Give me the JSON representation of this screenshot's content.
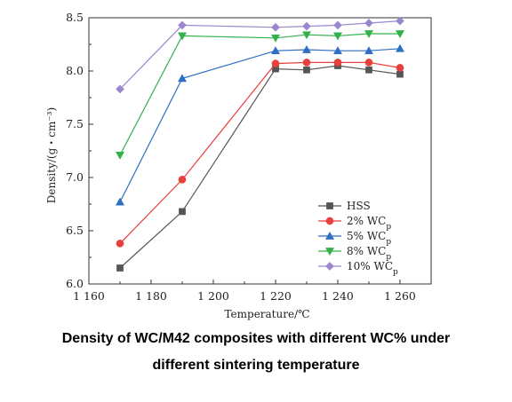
{
  "caption": {
    "line1": "Density of WC/M42 composites with different WC% under",
    "line2": "different sintering temperature"
  },
  "chart_data": {
    "type": "line",
    "title": "",
    "xlabel": "Temperature/℃",
    "ylabel": "Density/(g・cm⁻³)",
    "xlim": [
      1160,
      1270
    ],
    "ylim": [
      6.0,
      8.5
    ],
    "xticks": [
      1160,
      1180,
      1200,
      1220,
      1240,
      1260
    ],
    "xtick_labels": [
      "1 160",
      "1 180",
      "1 200",
      "1 220",
      "1 240",
      "1 260"
    ],
    "yticks": [
      6.0,
      6.5,
      7.0,
      7.5,
      8.0,
      8.5
    ],
    "ytick_labels": [
      "6.0",
      "6.5",
      "7.0",
      "7.5",
      "8.0",
      "8.5"
    ],
    "grid": false,
    "legend_position": "lower-right",
    "series": [
      {
        "name": "HSS",
        "color": "#555555",
        "marker": "square",
        "x": [
          1170,
          1190,
          1220,
          1230,
          1240,
          1250,
          1260
        ],
        "y": [
          6.15,
          6.68,
          8.02,
          8.01,
          8.05,
          8.01,
          7.97
        ]
      },
      {
        "name": "2% WC_p",
        "color": "#e8403c",
        "marker": "circle",
        "x": [
          1170,
          1190,
          1220,
          1230,
          1240,
          1250,
          1260
        ],
        "y": [
          6.38,
          6.98,
          8.07,
          8.08,
          8.08,
          8.08,
          8.03
        ]
      },
      {
        "name": "5% WC_p",
        "color": "#2e6fc4",
        "marker": "triangle-up",
        "x": [
          1170,
          1190,
          1220,
          1230,
          1240,
          1250,
          1260
        ],
        "y": [
          6.77,
          7.93,
          8.19,
          8.2,
          8.19,
          8.19,
          8.21
        ]
      },
      {
        "name": "8% WC_p",
        "color": "#33b24c",
        "marker": "triangle-down",
        "x": [
          1170,
          1190,
          1220,
          1230,
          1240,
          1250,
          1260
        ],
        "y": [
          7.21,
          8.33,
          8.31,
          8.34,
          8.33,
          8.35,
          8.35
        ]
      },
      {
        "name": "10% WC_p",
        "color": "#9b87cf",
        "marker": "diamond",
        "x": [
          1170,
          1190,
          1220,
          1230,
          1240,
          1250,
          1260
        ],
        "y": [
          7.83,
          8.43,
          8.41,
          8.42,
          8.43,
          8.45,
          8.47
        ]
      }
    ]
  }
}
